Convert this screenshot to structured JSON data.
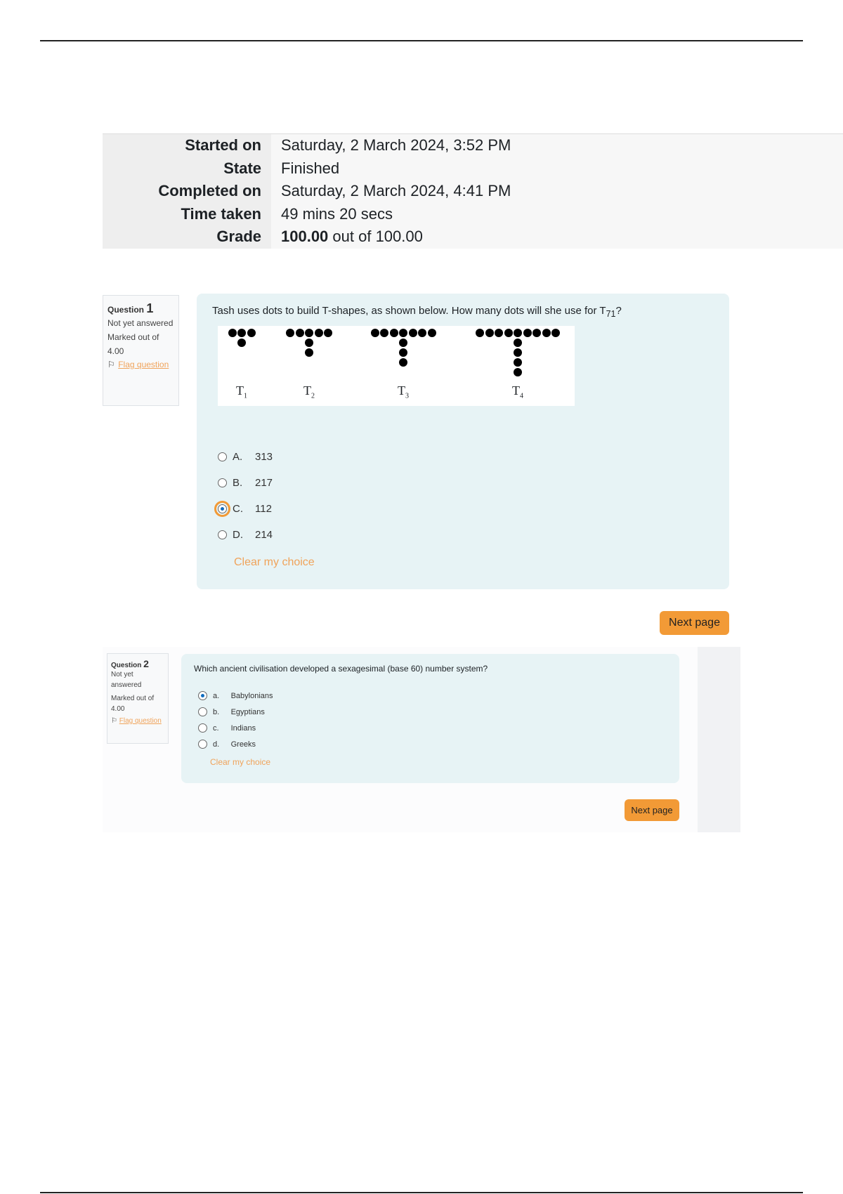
{
  "summary": [
    {
      "label": "Started on",
      "value": "Saturday, 2 March 2024, 3:52 PM"
    },
    {
      "label": "State",
      "value": "Finished"
    },
    {
      "label": "Completed on",
      "value": "Saturday, 2 March 2024, 4:41 PM"
    },
    {
      "label": "Time taken",
      "value": "49 mins 20 secs"
    },
    {
      "label": "Grade",
      "value_bold": "100.00",
      "value": " out of 100.00"
    }
  ],
  "q1": {
    "label": "Question",
    "number": "1",
    "status": "Not yet answered",
    "marked": "Marked out of 4.00",
    "flag": "Flag question",
    "text": "Tash uses dots to build T-shapes, as shown below. How many dots will she use for T",
    "sub": "71",
    "text_end": "?",
    "figure_labels": [
      "T",
      "T",
      "T",
      "T"
    ],
    "figure_subs": [
      "1",
      "2",
      "3",
      "4"
    ],
    "options": [
      {
        "letter": "A.",
        "text": "313",
        "selected": false
      },
      {
        "letter": "B.",
        "text": "217",
        "selected": false
      },
      {
        "letter": "C.",
        "text": "112",
        "selected": true
      },
      {
        "letter": "D.",
        "text": "214",
        "selected": false
      }
    ],
    "clear": "Clear my choice",
    "next": "Next page"
  },
  "q2": {
    "label": "Question",
    "number": "2",
    "status": "Not yet answered",
    "marked": "Marked out of 4.00",
    "flag": "Flag question",
    "text": "Which ancient civilisation developed a sexagesimal (base 60) number system?",
    "options": [
      {
        "letter": "a.",
        "text": "Babylonians",
        "selected": true
      },
      {
        "letter": "b.",
        "text": "Egyptians",
        "selected": false
      },
      {
        "letter": "c.",
        "text": "Indians",
        "selected": false
      },
      {
        "letter": "d.",
        "text": "Greeks",
        "selected": false
      }
    ],
    "clear": "Clear my choice",
    "next": "Next page"
  },
  "colors": {
    "accent": "#f29a36",
    "panel": "#e7f3f5",
    "radio": "#0f6cbf"
  }
}
